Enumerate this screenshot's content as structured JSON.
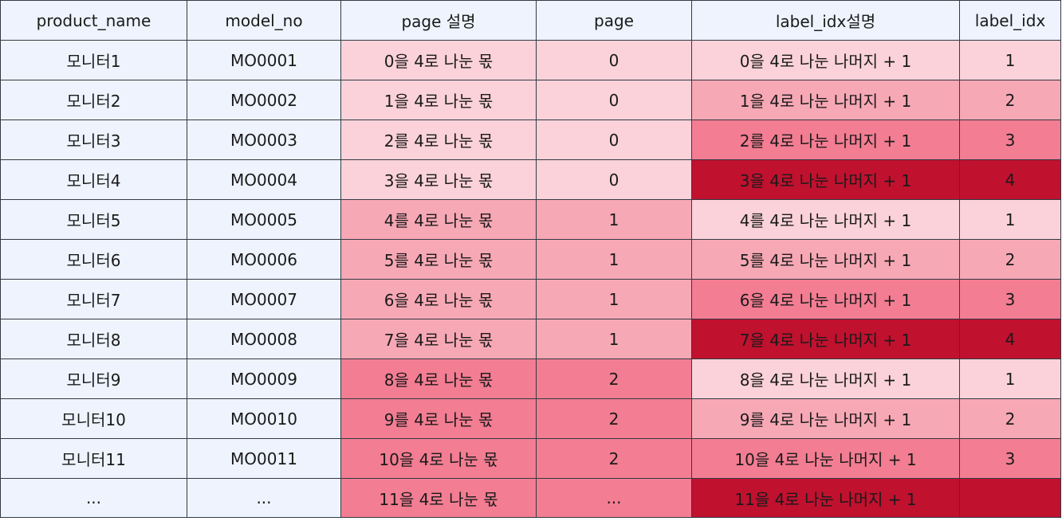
{
  "table": {
    "headers": [
      "product_name",
      "model_no",
      "page 설명",
      "page",
      "label_idx설명",
      "label_idx"
    ],
    "rows": [
      {
        "product_name": "모니터1",
        "model_no": "MO0001",
        "page_desc": "0을 4로 나눈 몫",
        "page": "0",
        "label_desc": "0을 4로 나눈 나머지 + 1",
        "label_idx": "1"
      },
      {
        "product_name": "모니터2",
        "model_no": "MO0002",
        "page_desc": "1을 4로 나눈 몫",
        "page": "0",
        "label_desc": "1을 4로 나눈 나머지 + 1",
        "label_idx": "2"
      },
      {
        "product_name": "모니터3",
        "model_no": "MO0003",
        "page_desc": "2를 4로 나눈 몫",
        "page": "0",
        "label_desc": "2를 4로 나눈 나머지 + 1",
        "label_idx": "3"
      },
      {
        "product_name": "모니터4",
        "model_no": "MO0004",
        "page_desc": "3을 4로 나눈 몫",
        "page": "0",
        "label_desc": "3을 4로 나눈 나머지 + 1",
        "label_idx": "4"
      },
      {
        "product_name": "모니터5",
        "model_no": "MO0005",
        "page_desc": "4를 4로 나눈 몫",
        "page": "1",
        "label_desc": "4를 4로 나눈 나머지 + 1",
        "label_idx": "1"
      },
      {
        "product_name": "모니터6",
        "model_no": "MO0006",
        "page_desc": "5를 4로 나눈 몫",
        "page": "1",
        "label_desc": "5를 4로 나눈 나머지 + 1",
        "label_idx": "2"
      },
      {
        "product_name": "모니터7",
        "model_no": "MO0007",
        "page_desc": "6을 4로 나눈 몫",
        "page": "1",
        "label_desc": "6을 4로 나눈 나머지 + 1",
        "label_idx": "3"
      },
      {
        "product_name": "모니터8",
        "model_no": "MO0008",
        "page_desc": "7을 4로 나눈 몫",
        "page": "1",
        "label_desc": "7을 4로 나눈 나머지 + 1",
        "label_idx": "4"
      },
      {
        "product_name": "모니터9",
        "model_no": "MO0009",
        "page_desc": "8을 4로 나눈 몫",
        "page": "2",
        "label_desc": "8을 4로 나눈 나머지 + 1",
        "label_idx": "1"
      },
      {
        "product_name": "모니터10",
        "model_no": "MO0010",
        "page_desc": "9를 4로 나눈 몫",
        "page": "2",
        "label_desc": "9를 4로 나눈 나머지 + 1",
        "label_idx": "2"
      },
      {
        "product_name": "모니터11",
        "model_no": "MO0011",
        "page_desc": "10을 4로 나눈 몫",
        "page": "2",
        "label_desc": "10을 4로 나눈 나머지 + 1",
        "label_idx": "3"
      },
      {
        "product_name": "...",
        "model_no": "...",
        "page_desc": "11을 4로 나눈 몫",
        "page": "...",
        "label_desc": "11을 4로 나눈 나머지 + 1",
        "label_idx": ""
      }
    ]
  },
  "colors": {
    "header_bg": "#eef3fd",
    "page_0": "#fbd2d9",
    "page_1": "#f7a8b5",
    "page_2": "#f37d92",
    "label_1": "#fbd2d9",
    "label_2": "#f7a8b5",
    "label_3": "#f37d92",
    "label_4": "#c0112f",
    "border": "#333a44"
  }
}
